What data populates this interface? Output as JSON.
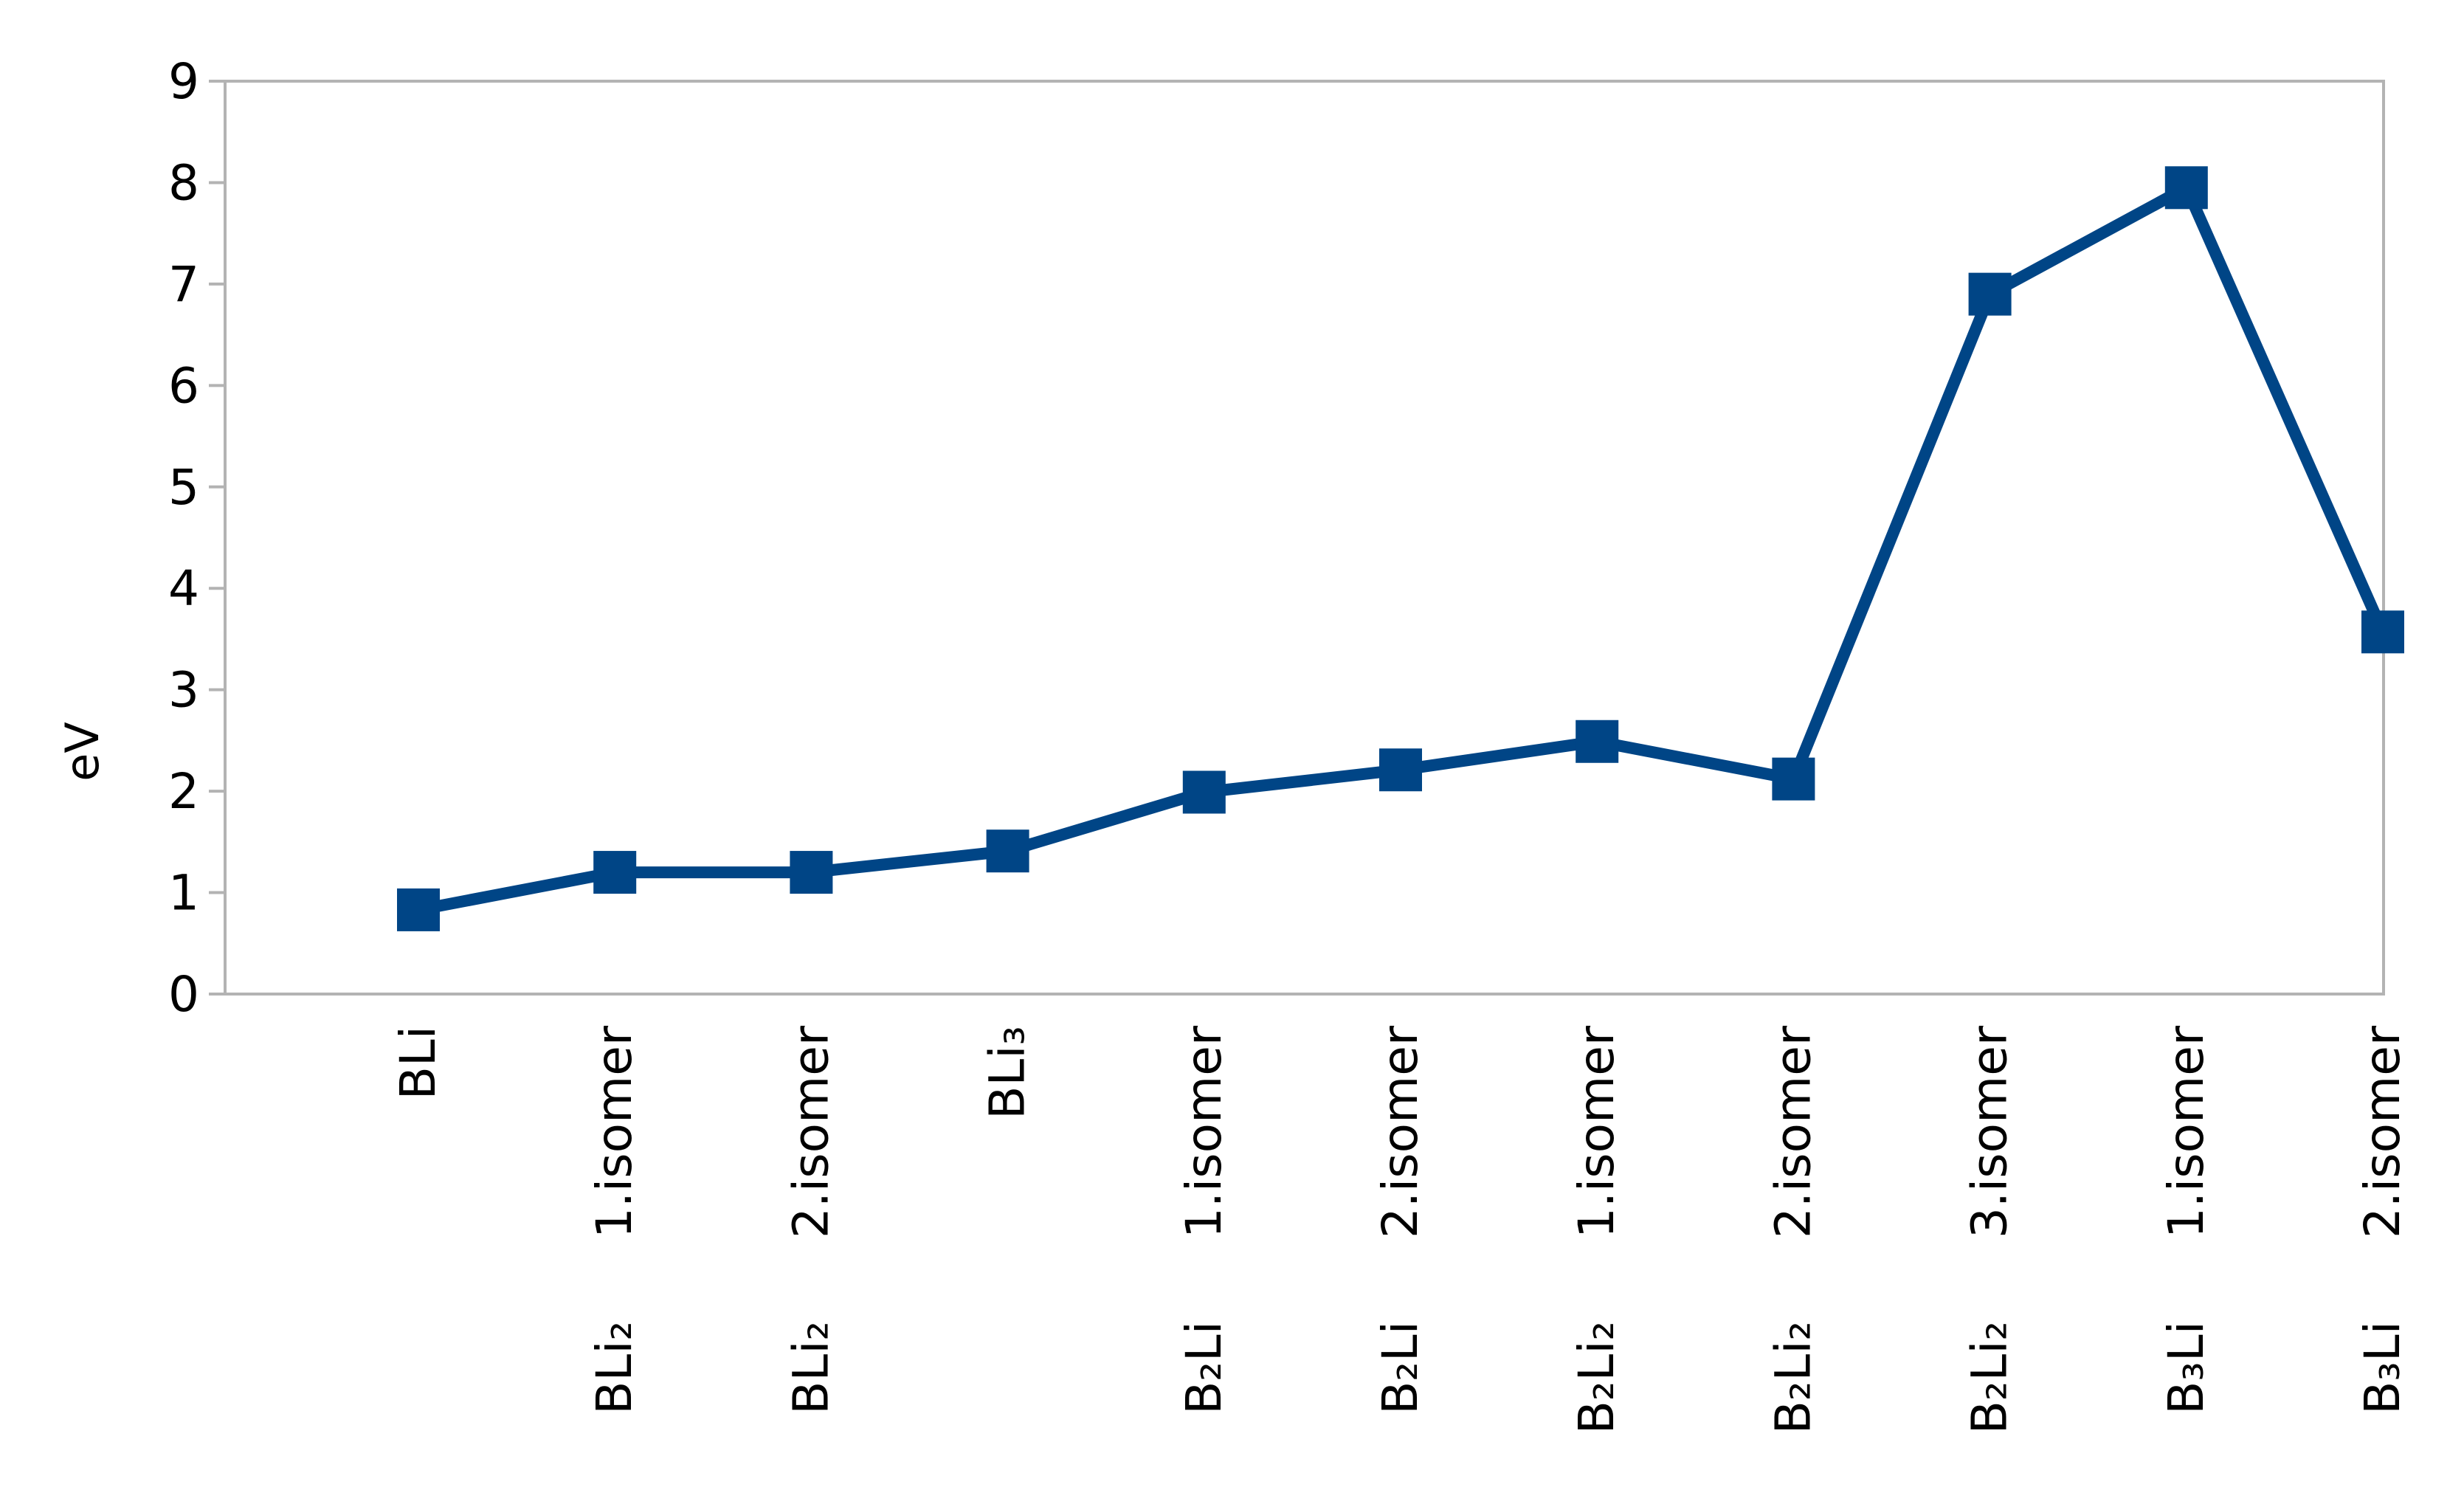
{
  "chart_data": {
    "type": "line",
    "ylabel": "eV",
    "ylim": [
      0,
      9
    ],
    "yticks": [
      0,
      1,
      2,
      3,
      4,
      5,
      6,
      7,
      8,
      9
    ],
    "grid": false,
    "categories": [
      {
        "formula": "BLi",
        "isomer": ""
      },
      {
        "formula": "BLi₂",
        "isomer": "1.isomer"
      },
      {
        "formula": "BLi₂",
        "isomer": "2.isomer"
      },
      {
        "formula": "BLi₃",
        "isomer": ""
      },
      {
        "formula": "B₂Li",
        "isomer": "1.isomer"
      },
      {
        "formula": "B₂Li",
        "isomer": "2.isomer"
      },
      {
        "formula": "B₂Li₂",
        "isomer": "1.isomer"
      },
      {
        "formula": "B₂Li₂",
        "isomer": "2.isomer"
      },
      {
        "formula": "B₂Li₂",
        "isomer": "3.isomer"
      },
      {
        "formula": "B₃Li",
        "isomer": "1.isomer"
      },
      {
        "formula": "B₃Li",
        "isomer": "2.isomer"
      }
    ],
    "series": [
      {
        "values": [
          0.83,
          1.2,
          1.2,
          1.41,
          1.99,
          2.21,
          2.49,
          2.12,
          6.9,
          7.95,
          3.57
        ]
      }
    ],
    "colors": {
      "series": "#004586",
      "axis": "#b3b3b3"
    }
  }
}
